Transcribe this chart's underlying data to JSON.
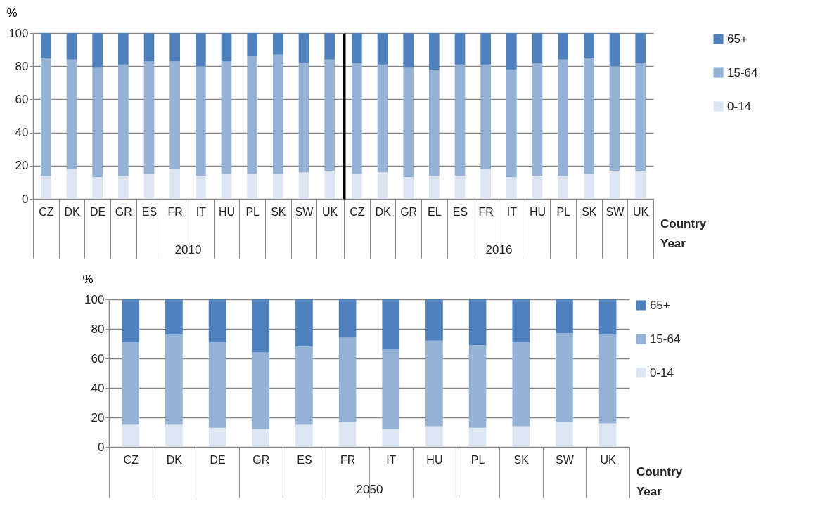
{
  "chart_data": [
    {
      "type": "bar",
      "stacked": true,
      "xlabel": "2010",
      "ylabel": "%",
      "ylim": [
        0,
        100
      ],
      "yticks": [
        0,
        20,
        40,
        60,
        80,
        100
      ],
      "grid": "y",
      "legend": "right",
      "categories": [
        "CZ",
        "DK",
        "DE",
        "GR",
        "ES",
        "FR",
        "IT",
        "HU",
        "PL",
        "SK",
        "SW",
        "UK"
      ],
      "series": [
        {
          "name": "0-14",
          "color": "#dce6f2",
          "values": [
            14,
            18,
            13,
            14,
            15,
            18,
            14,
            15,
            15,
            15,
            16,
            17
          ]
        },
        {
          "name": "15-64",
          "color": "#95b3d7",
          "values": [
            71,
            66,
            66,
            67,
            68,
            65,
            66,
            68,
            71,
            72,
            66,
            67
          ]
        },
        {
          "name": "65+",
          "color": "#4f81bd",
          "values": [
            15,
            16,
            21,
            19,
            17,
            17,
            20,
            17,
            14,
            13,
            18,
            16
          ]
        }
      ]
    },
    {
      "type": "bar",
      "stacked": true,
      "xlabel": "2016",
      "ylim": [
        0,
        100
      ],
      "yticks": [
        0,
        20,
        40,
        60,
        80,
        100
      ],
      "grid": "y",
      "tick_labels": "x",
      "legend": "right",
      "annotations": [
        "Country",
        "Year"
      ],
      "categories": [
        "CZ",
        "DK",
        "GR",
        "EL",
        "ES",
        "FR",
        "IT",
        "HU",
        "PL",
        "SK",
        "SW",
        "UK"
      ],
      "series": [
        {
          "name": "0-14",
          "color": "#dce6f2",
          "values": [
            15,
            16,
            13,
            14,
            14,
            18,
            13,
            14,
            14,
            15,
            17,
            17
          ]
        },
        {
          "name": "15-64",
          "color": "#95b3d7",
          "values": [
            67,
            65,
            66,
            64,
            67,
            63,
            65,
            68,
            70,
            70,
            63,
            65
          ]
        },
        {
          "name": "65+",
          "color": "#4f81bd",
          "values": [
            18,
            19,
            21,
            22,
            19,
            19,
            22,
            18,
            16,
            15,
            20,
            18
          ]
        }
      ]
    },
    {
      "type": "bar",
      "stacked": true,
      "xlabel": "2050",
      "ylabel": "%",
      "ylim": [
        0,
        100
      ],
      "yticks": [
        0,
        20,
        40,
        60,
        80,
        100
      ],
      "grid": "y",
      "legend": "right",
      "annotations": [
        "Country",
        "Year"
      ],
      "categories": [
        "CZ",
        "DK",
        "DE",
        "GR",
        "ES",
        "FR",
        "IT",
        "HU",
        "PL",
        "SK",
        "SW",
        "UK"
      ],
      "series": [
        {
          "name": "0-14",
          "color": "#dce6f2",
          "values": [
            15,
            15,
            13,
            12,
            15,
            17,
            12,
            14,
            13,
            14,
            17,
            16
          ]
        },
        {
          "name": "15-64",
          "color": "#95b3d7",
          "values": [
            56,
            61,
            58,
            52,
            53,
            57,
            54,
            58,
            56,
            57,
            60,
            60
          ]
        },
        {
          "name": "65+",
          "color": "#4f81bd",
          "values": [
            29,
            24,
            29,
            36,
            32,
            26,
            34,
            28,
            31,
            29,
            23,
            24
          ]
        }
      ]
    }
  ]
}
